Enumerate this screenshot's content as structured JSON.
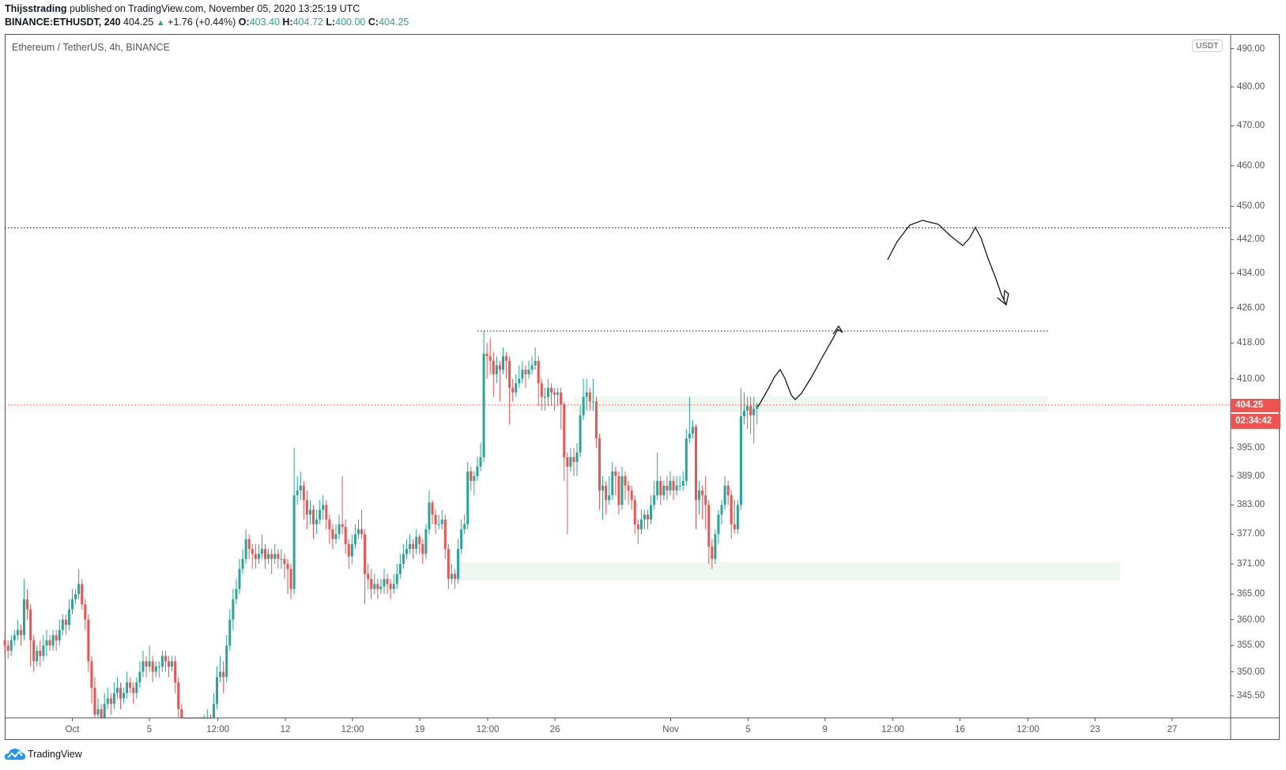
{
  "header": {
    "author": "Thijsstrading",
    "published_text": "published on TradingView.com, November 05, 2020 13:25:19 UTC",
    "symbol": "BINANCE:ETHUSDT, 240",
    "last": "404.25",
    "change": "+1.76 (+0.44%)",
    "o_label": "O:",
    "o": "403.40",
    "h_label": "H:",
    "h": "404.72",
    "l_label": "L:",
    "l": "400.00",
    "c_label": "C:",
    "c": "404.25"
  },
  "chart_title": "Ethereum / TetherUS, 4h, BINANCE",
  "currency_button": "USDT",
  "price_label": "404.25",
  "countdown": "02:34:42",
  "footer_logo": "TradingView",
  "colors": {
    "up": "#26a69a",
    "down": "#ef5350",
    "zone": "#e8f5e9",
    "price_line": "#ef5350"
  },
  "chart_data": {
    "type": "candlestick",
    "interval": "4h",
    "first_candle": "2020-09-27 12:00",
    "y_scale": "log",
    "ylim": [
      341.4,
      493.9
    ],
    "grid": false,
    "y_ticks": [
      "490.00",
      "480.00",
      "470.00",
      "460.00",
      "450.00",
      "442.00",
      "434.00",
      "426.00",
      "418.00",
      "410.00",
      "395.00",
      "389.00",
      "383.00",
      "377.00",
      "371.00",
      "365.00",
      "360.00",
      "355.00",
      "350.00",
      "345.50"
    ],
    "x_ticks": [
      "Oct",
      "5",
      "12:00",
      "12",
      "12:00",
      "19",
      "12:00",
      "26",
      "Nov",
      "5",
      "9",
      "12:00",
      "16",
      "12:00",
      "23",
      "27"
    ],
    "horizontal_lines": [
      {
        "price": 444.8,
        "style": "dotted",
        "color": "#131722"
      },
      {
        "price": 420.7,
        "style": "dotted",
        "color": "#131722"
      },
      {
        "price": 404.25,
        "style": "dotted",
        "color": "#ef5350"
      }
    ],
    "zones": [
      {
        "from": 402.7,
        "to": 406.2
      },
      {
        "from": 367.6,
        "to": 371.3
      }
    ],
    "candles": [
      [
        356,
        357.5,
        353.5,
        355
      ],
      [
        355,
        356,
        352.5,
        354
      ],
      [
        354,
        357,
        353,
        356
      ],
      [
        356,
        358,
        355,
        357
      ],
      [
        357,
        360,
        356,
        358
      ],
      [
        358,
        359,
        355,
        357
      ],
      [
        357,
        368,
        356,
        364
      ],
      [
        364,
        366,
        360,
        362
      ],
      [
        362,
        363,
        351,
        356
      ],
      [
        356,
        357,
        350,
        352
      ],
      [
        352,
        355,
        351,
        354
      ],
      [
        354,
        356,
        351,
        353
      ],
      [
        353,
        357,
        352,
        355
      ],
      [
        355,
        358,
        353,
        356
      ],
      [
        356,
        357,
        354,
        355
      ],
      [
        355,
        358,
        354,
        357
      ],
      [
        357,
        358,
        354,
        356
      ],
      [
        356,
        360,
        355,
        358
      ],
      [
        358,
        361,
        357,
        360
      ],
      [
        360,
        361,
        357,
        359
      ],
      [
        359,
        364,
        358,
        362
      ],
      [
        362,
        366,
        361,
        364
      ],
      [
        364,
        366,
        363,
        365
      ],
      [
        365,
        370,
        364,
        367
      ],
      [
        367,
        368,
        362,
        363
      ],
      [
        363,
        364,
        358,
        360
      ],
      [
        360,
        361,
        350,
        352
      ],
      [
        352,
        353,
        344,
        347
      ],
      [
        347,
        349,
        338,
        342
      ],
      [
        342,
        345,
        340,
        343
      ],
      [
        343,
        344,
        339,
        341
      ],
      [
        341,
        346,
        340,
        344
      ],
      [
        344,
        347,
        343,
        345
      ],
      [
        345,
        346,
        342,
        344
      ],
      [
        344,
        348,
        343,
        346
      ],
      [
        346,
        349,
        345,
        347
      ],
      [
        347,
        348,
        343,
        345
      ],
      [
        345,
        347,
        344,
        346
      ],
      [
        346,
        350,
        345,
        348
      ],
      [
        348,
        349,
        346,
        347
      ],
      [
        347,
        348,
        344,
        346
      ],
      [
        346,
        349,
        345,
        348
      ],
      [
        348,
        352,
        347,
        350
      ],
      [
        350,
        354,
        349,
        352
      ],
      [
        352,
        353,
        349,
        351
      ],
      [
        351,
        355,
        350,
        352
      ],
      [
        352,
        353,
        348,
        350
      ],
      [
        350,
        352,
        349,
        351
      ],
      [
        351,
        352,
        349,
        351
      ],
      [
        351,
        354,
        350,
        353
      ],
      [
        353,
        354,
        350,
        352
      ],
      [
        352,
        353,
        349,
        351
      ],
      [
        351,
        353,
        350,
        352
      ],
      [
        352,
        353,
        346,
        348
      ],
      [
        348,
        349,
        341,
        343
      ],
      [
        343,
        344,
        337,
        339
      ],
      [
        339,
        340,
        334,
        336
      ],
      [
        336,
        339,
        335,
        337
      ],
      [
        337,
        341,
        336,
        339
      ],
      [
        339,
        340,
        336,
        338
      ],
      [
        338,
        339,
        335,
        337
      ],
      [
        337,
        341,
        336,
        339
      ],
      [
        339,
        342,
        338,
        340
      ],
      [
        340,
        343,
        339,
        341
      ],
      [
        341,
        342,
        338,
        340
      ],
      [
        340,
        346,
        339,
        344
      ],
      [
        344,
        351,
        343,
        349
      ],
      [
        349,
        353,
        348,
        350
      ],
      [
        350,
        352,
        346,
        349
      ],
      [
        349,
        357,
        348,
        355
      ],
      [
        355,
        362,
        354,
        360
      ],
      [
        360,
        366,
        358,
        364
      ],
      [
        364,
        368,
        363,
        366
      ],
      [
        366,
        372,
        365,
        370
      ],
      [
        370,
        374,
        369,
        372
      ],
      [
        372,
        378,
        371,
        376
      ],
      [
        376,
        377,
        372,
        374
      ],
      [
        374,
        375,
        370,
        373
      ],
      [
        373,
        375,
        370,
        372
      ],
      [
        372,
        375,
        371,
        373
      ],
      [
        373,
        377,
        372,
        374
      ],
      [
        374,
        375,
        370,
        372
      ],
      [
        372,
        374,
        371,
        373
      ],
      [
        373,
        374,
        369,
        372
      ],
      [
        372,
        375,
        371,
        373
      ],
      [
        373,
        374,
        370,
        372
      ],
      [
        372,
        374,
        370,
        372
      ],
      [
        372,
        373,
        368,
        371
      ],
      [
        371,
        372,
        365,
        370
      ],
      [
        370,
        371,
        364,
        366
      ],
      [
        366,
        395,
        365,
        385
      ],
      [
        385,
        389,
        383,
        386
      ],
      [
        386,
        390,
        384,
        387
      ],
      [
        387,
        388,
        380,
        384
      ],
      [
        384,
        386,
        378,
        381
      ],
      [
        381,
        384,
        379,
        382
      ],
      [
        382,
        383,
        376,
        379
      ],
      [
        379,
        382,
        377,
        380
      ],
      [
        380,
        384,
        379,
        382
      ],
      [
        382,
        385,
        380,
        383
      ],
      [
        383,
        384,
        378,
        380
      ],
      [
        380,
        381,
        375,
        378
      ],
      [
        378,
        379,
        374,
        376
      ],
      [
        376,
        379,
        375,
        377
      ],
      [
        377,
        381,
        376,
        379
      ],
      [
        379,
        389,
        377,
        378.5
      ],
      [
        378.5,
        380,
        373,
        375
      ],
      [
        375,
        376,
        370,
        372.5
      ],
      [
        372.5,
        377,
        371,
        375
      ],
      [
        375,
        379,
        374,
        377
      ],
      [
        377,
        380,
        376,
        378
      ],
      [
        378,
        382,
        376,
        377
      ],
      [
        377,
        378,
        363,
        369
      ],
      [
        369,
        371,
        366,
        368
      ],
      [
        368,
        370,
        364,
        366
      ],
      [
        366,
        369,
        365,
        367
      ],
      [
        367,
        368,
        364,
        366
      ],
      [
        366,
        368,
        365,
        366.5
      ],
      [
        366.5,
        370,
        365,
        368
      ],
      [
        368,
        369,
        365,
        367
      ],
      [
        367,
        368,
        364,
        366
      ],
      [
        366,
        369,
        365,
        367
      ],
      [
        367,
        371,
        366,
        369
      ],
      [
        369,
        373,
        368,
        371
      ],
      [
        371,
        375,
        370,
        373
      ],
      [
        373,
        376,
        372,
        374
      ],
      [
        374,
        377,
        373,
        375
      ],
      [
        375,
        376,
        372,
        374
      ],
      [
        374,
        378,
        373,
        376.5
      ],
      [
        376.5,
        377,
        373,
        375
      ],
      [
        375,
        376,
        371,
        373
      ],
      [
        373,
        379,
        372,
        378
      ],
      [
        378,
        386,
        377,
        383.5
      ],
      [
        383.5,
        384,
        379,
        381
      ],
      [
        381,
        382,
        377,
        379
      ],
      [
        379,
        381,
        378,
        379
      ],
      [
        379,
        382,
        378,
        380
      ],
      [
        380,
        381,
        372,
        374
      ],
      [
        374,
        375,
        366,
        368
      ],
      [
        368,
        371,
        367,
        369
      ],
      [
        369,
        370,
        366,
        368
      ],
      [
        368,
        376,
        367,
        374
      ],
      [
        374,
        380,
        373,
        378
      ],
      [
        378,
        381,
        377,
        379
      ],
      [
        379,
        392,
        378,
        390
      ],
      [
        390,
        391,
        386,
        388
      ],
      [
        388,
        390,
        385,
        389
      ],
      [
        389,
        393,
        388,
        391
      ],
      [
        391,
        396,
        390,
        393
      ],
      [
        393,
        420.7,
        392,
        415.6
      ],
      [
        415.6,
        418,
        410,
        415
      ],
      [
        415,
        419,
        411,
        414
      ],
      [
        414,
        416,
        406,
        411
      ],
      [
        411,
        415,
        409,
        413
      ],
      [
        413,
        414,
        405,
        412
      ],
      [
        412,
        417,
        411,
        415
      ],
      [
        415,
        416,
        410,
        414
      ],
      [
        414,
        415,
        400,
        408
      ],
      [
        408,
        410,
        405,
        407
      ],
      [
        407,
        411,
        406,
        409
      ],
      [
        409,
        413,
        408,
        410
      ],
      [
        410,
        414,
        409,
        412
      ],
      [
        412,
        413,
        408,
        411
      ],
      [
        411,
        414,
        410,
        412
      ],
      [
        412,
        415,
        411,
        413
      ],
      [
        413,
        417,
        412,
        414
      ],
      [
        414,
        415,
        404,
        409
      ],
      [
        409,
        410,
        403,
        406
      ],
      [
        406,
        408,
        403,
        406
      ],
      [
        406,
        410,
        404,
        408
      ],
      [
        408,
        409,
        404,
        407
      ],
      [
        407,
        408,
        403,
        406.5
      ],
      [
        406.5,
        408,
        404,
        407
      ],
      [
        407,
        408,
        399,
        404.4
      ],
      [
        404.4,
        405,
        388,
        393
      ],
      [
        393,
        394,
        377,
        391
      ],
      [
        391,
        395,
        390,
        393
      ],
      [
        393,
        395,
        389,
        392
      ],
      [
        392,
        396,
        389,
        394
      ],
      [
        394,
        404,
        393,
        402
      ],
      [
        402,
        410,
        401,
        406
      ],
      [
        406,
        410,
        403,
        407
      ],
      [
        407,
        408,
        403,
        405
      ],
      [
        405,
        410,
        403,
        405
      ],
      [
        405,
        406,
        395,
        397
      ],
      [
        397,
        398,
        382,
        386
      ],
      [
        386,
        389,
        380,
        387
      ],
      [
        387,
        388,
        381,
        384
      ],
      [
        384,
        389,
        383,
        385
      ],
      [
        385,
        392,
        384,
        390
      ],
      [
        390,
        391,
        385,
        389
      ],
      [
        389,
        390,
        381,
        383
      ],
      [
        383,
        391,
        382,
        389
      ],
      [
        389,
        390,
        384,
        387
      ],
      [
        387,
        388,
        383,
        386
      ],
      [
        386,
        387,
        382,
        384
      ],
      [
        384,
        385,
        377,
        379
      ],
      [
        379,
        380,
        375,
        378
      ],
      [
        378,
        382,
        377,
        380
      ],
      [
        380,
        382,
        378,
        381
      ],
      [
        381,
        382,
        378,
        380
      ],
      [
        380,
        385,
        379,
        383
      ],
      [
        383,
        388,
        382,
        385
      ],
      [
        385,
        394,
        384,
        388
      ],
      [
        388,
        389,
        383,
        385
      ],
      [
        385,
        388,
        384,
        387
      ],
      [
        387,
        389,
        384,
        386
      ],
      [
        386,
        390,
        385,
        388
      ],
      [
        388,
        389,
        384,
        386
      ],
      [
        386,
        389,
        385,
        387
      ],
      [
        387,
        389,
        386,
        387
      ],
      [
        387,
        390,
        386,
        388
      ],
      [
        388,
        399,
        387,
        397
      ],
      [
        397,
        406,
        396,
        398
      ],
      [
        398,
        401,
        397,
        399.5
      ],
      [
        399.5,
        400,
        378,
        384
      ],
      [
        384,
        388,
        381,
        386
      ],
      [
        386,
        387,
        380,
        385
      ],
      [
        385,
        389,
        378,
        383
      ],
      [
        383,
        384,
        371,
        374.5
      ],
      [
        374.5,
        376,
        370,
        372
      ],
      [
        372,
        378,
        371,
        377
      ],
      [
        377,
        382,
        375,
        381
      ],
      [
        381,
        384,
        379,
        383
      ],
      [
        383,
        389,
        382,
        387
      ],
      [
        387,
        388,
        383,
        385
      ],
      [
        385,
        386,
        376,
        379
      ],
      [
        379,
        384,
        377,
        378
      ],
      [
        378,
        384,
        377,
        383
      ],
      [
        383,
        408,
        382,
        401.8
      ],
      [
        401.8,
        407,
        400,
        403
      ],
      [
        403,
        406,
        399,
        404
      ],
      [
        404,
        406,
        398,
        402
      ],
      [
        402,
        406,
        396,
        403.4
      ],
      [
        403.4,
        404.72,
        400.0,
        404.25
      ]
    ]
  }
}
